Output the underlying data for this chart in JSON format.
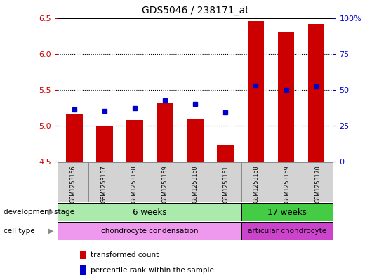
{
  "title": "GDS5046 / 238171_at",
  "samples": [
    "GSM1253156",
    "GSM1253157",
    "GSM1253158",
    "GSM1253159",
    "GSM1253160",
    "GSM1253161",
    "GSM1253168",
    "GSM1253169",
    "GSM1253170"
  ],
  "bar_values": [
    5.15,
    5.0,
    5.08,
    5.32,
    5.1,
    4.72,
    6.46,
    6.3,
    6.42
  ],
  "bar_bottom": 4.5,
  "percentile_values": [
    5.22,
    5.2,
    5.24,
    5.35,
    5.3,
    5.18,
    5.56,
    5.5,
    5.55
  ],
  "ylim_left": [
    4.5,
    6.5
  ],
  "ylim_right": [
    0,
    100
  ],
  "yticks_left": [
    4.5,
    5.0,
    5.5,
    6.0,
    6.5
  ],
  "yticks_right": [
    0,
    25,
    50,
    75,
    100
  ],
  "ytick_labels_right": [
    "0",
    "25",
    "50",
    "75",
    "100%"
  ],
  "bar_color": "#cc0000",
  "percentile_color": "#0000cc",
  "grid_values": [
    5.0,
    5.5,
    6.0
  ],
  "axis_label_color_left": "#cc0000",
  "axis_label_color_right": "#0000cc",
  "background_color": "#ffffff",
  "dev_stage_label": "development stage",
  "dev_stage_6w": "6 weeks",
  "dev_stage_17w": "17 weeks",
  "cell_type_label": "cell type",
  "cell_type_1": "chondrocyte condensation",
  "cell_type_2": "articular chondrocyte",
  "dev_stage_bg_light": "#aaeaaa",
  "dev_stage_bg_dark": "#44cc44",
  "cell_type_bg_light": "#ee99ee",
  "cell_type_bg_dark": "#cc44cc",
  "sample_box_bg": "#d3d3d3",
  "legend_bar": "transformed count",
  "legend_pct": "percentile rank within the sample",
  "bar_width": 0.55,
  "n_group1": 6,
  "n_group2": 3
}
